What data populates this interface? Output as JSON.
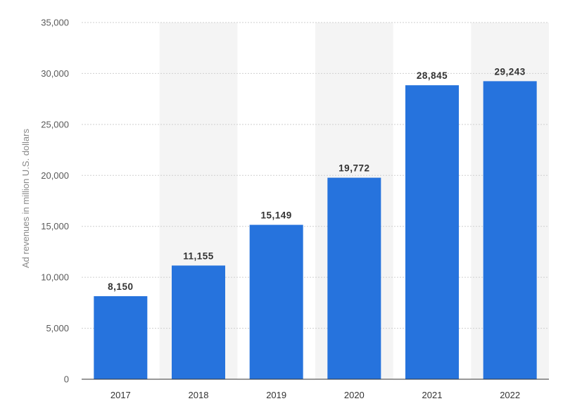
{
  "chart_data": {
    "type": "bar",
    "categories": [
      "2017",
      "2018",
      "2019",
      "2020",
      "2021",
      "2022"
    ],
    "values": [
      8150,
      11155,
      15149,
      19772,
      28845,
      29243
    ],
    "data_labels": [
      "8,150",
      "11,155",
      "15,149",
      "19,772",
      "28,845",
      "29,243"
    ],
    "ylabel": "Ad revenues in million U.S. dollars",
    "xlabel": "",
    "ylim": [
      0,
      35000
    ],
    "yticks": [
      0,
      5000,
      10000,
      15000,
      20000,
      25000,
      30000,
      35000
    ],
    "ytick_labels": [
      "0",
      "5,000",
      "10,000",
      "15,000",
      "20,000",
      "25,000",
      "30,000",
      "35,000"
    ],
    "grid": true,
    "bar_color": "#2673dd",
    "band_color": "#f4f4f4"
  }
}
